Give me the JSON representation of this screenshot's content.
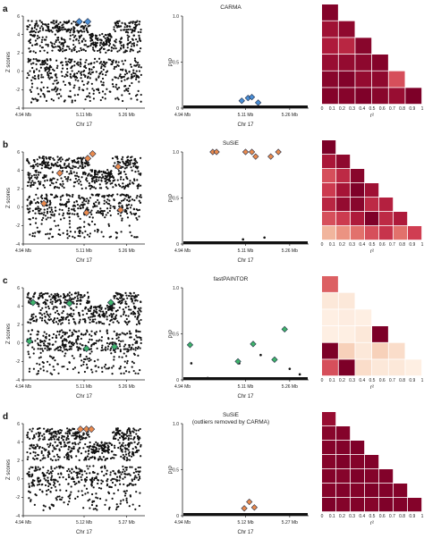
{
  "palette": {
    "carma": "#4a8fd6",
    "susie": "#e98b4e",
    "fastpaintor": "#3fb36a",
    "outline": "#1f2a44",
    "dots": "#111111"
  },
  "chart_data": [
    {
      "panel": "a",
      "method": "CARMA",
      "subtitle": "",
      "highlight_color": "carma",
      "zscore": {
        "type": "scatter",
        "ylabel": "Z scores",
        "xlabel": "Chr 17",
        "ylim": [
          -4,
          6
        ],
        "yticks": [
          "6",
          "4",
          "2",
          "0",
          "-2",
          "-4"
        ],
        "xticks": [
          "4.94 Mb",
          "5.11 Mb",
          "5.26 Mb"
        ],
        "highlight_points": [
          [
            0.46,
            5.4
          ],
          [
            0.53,
            5.4
          ]
        ]
      },
      "pip": {
        "type": "scatter",
        "ylabel": "PIP",
        "xlabel": "Chr 17",
        "ylim": [
          0,
          1.0
        ],
        "yticks": [
          "1.0",
          "0.5",
          "0"
        ],
        "xticks": [
          "4.94 Mb",
          "5.11 Mb",
          "5.26 Mb"
        ],
        "highlight_points": [
          [
            0.47,
            0.08
          ],
          [
            0.52,
            0.11
          ],
          [
            0.55,
            0.12
          ],
          [
            0.6,
            0.06
          ]
        ],
        "other_points": []
      },
      "ld": {
        "type": "heatmap",
        "xlabel": "r²",
        "xticks": [
          "0",
          "0.1",
          "0.2",
          "0.3",
          "0.4",
          "0.5",
          "0.6",
          "0.7",
          "0.8",
          "0.9",
          "1"
        ],
        "matrix": [
          [
            0.97
          ],
          [
            0.85,
            0.92
          ],
          [
            0.78,
            0.72,
            0.95
          ],
          [
            0.88,
            0.9,
            0.93,
            0.97
          ],
          [
            0.95,
            0.98,
            0.9,
            0.92,
            0.55
          ],
          [
            0.97,
            0.96,
            0.99,
            0.95,
            0.88,
            1.0
          ]
        ]
      }
    },
    {
      "panel": "b",
      "method": "SuSiE",
      "subtitle": "",
      "highlight_color": "susie",
      "zscore": {
        "type": "scatter",
        "ylabel": "Z scores",
        "xlabel": "Chr 17",
        "ylim": [
          -4,
          6
        ],
        "yticks": [
          "6",
          "4",
          "2",
          "0",
          "-2",
          "-4"
        ],
        "xticks": [
          "4.94 Mb",
          "5.11 Mb",
          "5.26 Mb"
        ],
        "highlight_points": [
          [
            0.3,
            3.7
          ],
          [
            0.53,
            5.3
          ],
          [
            0.57,
            5.8
          ],
          [
            0.78,
            4.4
          ],
          [
            0.17,
            0.4
          ],
          [
            0.52,
            -0.6
          ],
          [
            0.8,
            -0.3
          ]
        ]
      },
      "pip": {
        "type": "scatter",
        "ylabel": "PIP",
        "xlabel": "Chr 17",
        "ylim": [
          0,
          1.0
        ],
        "yticks": [
          "1.0",
          "0.5",
          "0"
        ],
        "xticks": [
          "4.94 Mb",
          "5.11 Mb",
          "5.26 Mb"
        ],
        "highlight_points": [
          [
            0.24,
            1.0
          ],
          [
            0.27,
            1.0
          ],
          [
            0.5,
            1.0
          ],
          [
            0.55,
            1.0
          ],
          [
            0.58,
            0.95
          ],
          [
            0.7,
            0.95
          ],
          [
            0.76,
            1.0
          ]
        ],
        "other_points": [
          [
            0.48,
            0.05
          ],
          [
            0.65,
            0.07
          ]
        ]
      },
      "ld": {
        "type": "heatmap",
        "xlabel": "r²",
        "xticks": [
          "0",
          "0.1",
          "0.2",
          "0.3",
          "0.4",
          "0.5",
          "0.6",
          "0.7",
          "0.8",
          "0.9",
          "1"
        ],
        "matrix": [
          [
            1.0
          ],
          [
            0.8,
            0.92
          ],
          [
            0.55,
            0.7,
            0.95
          ],
          [
            0.62,
            0.82,
            0.99,
            0.85
          ],
          [
            0.72,
            0.9,
            0.95,
            0.7,
            0.75
          ],
          [
            0.55,
            0.62,
            0.78,
            0.99,
            0.7,
            0.78
          ],
          [
            0.25,
            0.35,
            0.45,
            0.55,
            0.65,
            0.45,
            0.6
          ]
        ]
      }
    },
    {
      "panel": "c",
      "method": "fastPAINTOR",
      "subtitle": "",
      "highlight_color": "fastpaintor",
      "zscore": {
        "type": "scatter",
        "ylabel": "Z scores",
        "xlabel": "Chr 17",
        "ylim": [
          -4,
          6
        ],
        "yticks": [
          "6",
          "4",
          "2",
          "0",
          "-2",
          "-4"
        ],
        "xticks": [
          "4.94 Mb",
          "5.11 Mb",
          "5.26 Mb"
        ],
        "highlight_points": [
          [
            0.08,
            4.4
          ],
          [
            0.38,
            4.3
          ],
          [
            0.72,
            4.4
          ],
          [
            0.05,
            0.2
          ],
          [
            0.52,
            -0.6
          ],
          [
            0.75,
            -0.4
          ]
        ]
      },
      "pip": {
        "type": "scatter",
        "ylabel": "PIP",
        "xlabel": "Chr 17",
        "ylim": [
          0,
          1.0
        ],
        "yticks": [
          "1.0",
          "0.5",
          "0"
        ],
        "xticks": [
          "4.94 Mb",
          "5.11 Mb",
          "5.26 Mb"
        ],
        "highlight_points": [
          [
            0.06,
            0.38
          ],
          [
            0.44,
            0.2
          ],
          [
            0.56,
            0.39
          ],
          [
            0.73,
            0.22
          ],
          [
            0.81,
            0.55
          ]
        ],
        "other_points": [
          [
            0.07,
            0.18
          ],
          [
            0.2,
            0.02
          ],
          [
            0.45,
            0.18
          ],
          [
            0.62,
            0.27
          ],
          [
            0.85,
            0.12
          ],
          [
            0.93,
            0.06
          ]
        ]
      },
      "ld": {
        "type": "heatmap",
        "xlabel": "r²",
        "xticks": [
          "0",
          "0.1",
          "0.2",
          "0.3",
          "0.4",
          "0.5",
          "0.6",
          "0.7",
          "0.8",
          "0.9",
          "1"
        ],
        "matrix": [
          [
            0.5
          ],
          [
            0.05,
            0.05
          ],
          [
            0.02,
            0.03,
            0.02
          ],
          [
            0.02,
            0.02,
            0.05,
            1.0
          ],
          [
            1.0,
            0.15,
            0.05,
            0.15,
            0.1
          ],
          [
            0.55,
            1.0,
            0.1,
            0.05,
            0.05,
            0.02
          ]
        ]
      }
    },
    {
      "panel": "d",
      "method": "SuSiE",
      "subtitle": "(outliers removed by CARMA)",
      "highlight_color": "susie",
      "zscore": {
        "type": "scatter",
        "ylabel": "Z scores",
        "xlabel": "Chr 17",
        "ylim": [
          -4,
          6
        ],
        "yticks": [
          "6",
          "4",
          "2",
          "0",
          "-2",
          "-4"
        ],
        "xticks": [
          "4.94 Mb",
          "5.12 Mb",
          "5.27 Mb"
        ],
        "highlight_points": [
          [
            0.47,
            5.4
          ],
          [
            0.52,
            5.4
          ],
          [
            0.56,
            5.4
          ]
        ]
      },
      "pip": {
        "type": "scatter",
        "ylabel": "PIP",
        "xlabel": "Chr 17",
        "ylim": [
          0,
          1.0
        ],
        "yticks": [
          "1.0",
          "0.5",
          "0"
        ],
        "xticks": [
          "4.94 Mb",
          "5.12 Mb",
          "5.27 Mb"
        ],
        "highlight_points": [
          [
            0.49,
            0.08
          ],
          [
            0.53,
            0.15
          ],
          [
            0.57,
            0.09
          ]
        ],
        "other_points": []
      },
      "ld": {
        "type": "heatmap",
        "xlabel": "r²",
        "xticks": [
          "0",
          "0.1",
          "0.2",
          "0.3",
          "0.4",
          "0.5",
          "0.6",
          "0.7",
          "0.8",
          "0.9",
          "1"
        ],
        "matrix": [
          [
            0.88
          ],
          [
            0.95,
            0.97
          ],
          [
            0.97,
            0.98,
            0.99
          ],
          [
            0.96,
            0.99,
            0.97,
            0.98
          ],
          [
            0.97,
            0.96,
            0.99,
            0.97,
            0.98
          ],
          [
            0.96,
            0.98,
            0.97,
            0.99,
            0.98,
            0.97
          ],
          [
            0.99,
            0.97,
            0.98,
            0.96,
            0.99,
            0.98,
            0.97
          ]
        ]
      }
    }
  ]
}
